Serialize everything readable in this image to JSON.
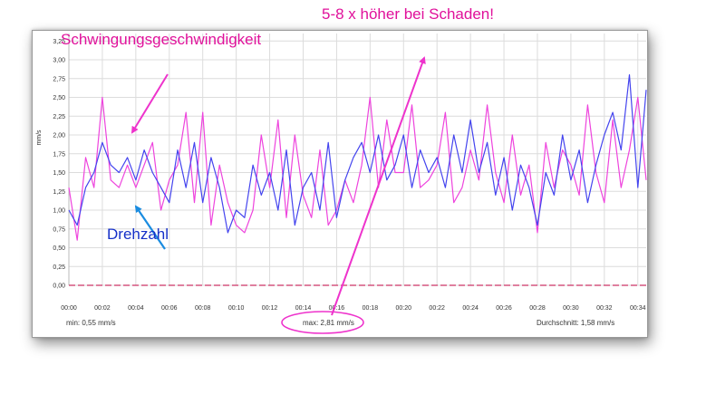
{
  "chart_data": {
    "type": "line",
    "title": "",
    "xlabel": "",
    "ylabel": "mm/s",
    "ylim": [
      0,
      3.35
    ],
    "y_ticks": [
      "0,00",
      "0,25",
      "0,50",
      "0,75",
      "1,00",
      "1,25",
      "1,50",
      "1,75",
      "2,00",
      "2,25",
      "2,50",
      "2,75",
      "3,00",
      "3,25"
    ],
    "x_ticks": [
      "00:00",
      "00:02",
      "00:04",
      "00:06",
      "00:08",
      "00:10",
      "00:12",
      "00:14",
      "00:16",
      "00:18",
      "00:20",
      "00:22",
      "00:24",
      "00:26",
      "00:28",
      "00:30",
      "00:32",
      "00:34"
    ],
    "xlim": [
      0,
      34.5
    ],
    "grid": true,
    "legend": "none",
    "series": [
      {
        "name": "Schwingungsgeschwindigkeit",
        "color": "#ee44dd",
        "x": [
          0,
          0.5,
          1,
          1.5,
          2,
          2.5,
          3,
          3.5,
          4,
          4.5,
          5,
          5.5,
          6,
          6.5,
          7,
          7.5,
          8,
          8.5,
          9,
          9.5,
          10,
          10.5,
          11,
          11.5,
          12,
          12.5,
          13,
          13.5,
          14,
          14.5,
          15,
          15.5,
          16,
          16.5,
          17,
          17.5,
          18,
          18.5,
          19,
          19.5,
          20,
          20.5,
          21,
          21.5,
          22,
          22.5,
          23,
          23.5,
          24,
          24.5,
          25,
          25.5,
          26,
          26.5,
          27,
          27.5,
          28,
          28.5,
          29,
          29.5,
          30,
          30.5,
          31,
          31.5,
          32,
          32.5,
          33,
          33.5,
          34,
          34.5
        ],
        "values": [
          1.3,
          0.6,
          1.7,
          1.3,
          2.5,
          1.4,
          1.3,
          1.6,
          1.3,
          1.6,
          1.9,
          1.0,
          1.4,
          1.6,
          2.3,
          1.1,
          2.3,
          0.8,
          1.6,
          1.1,
          0.8,
          0.7,
          1.0,
          2.0,
          1.3,
          2.2,
          0.9,
          2.0,
          1.2,
          0.9,
          1.8,
          0.8,
          1.0,
          1.4,
          1.1,
          1.6,
          2.5,
          1.3,
          2.2,
          1.5,
          1.5,
          2.4,
          1.3,
          1.4,
          1.6,
          2.3,
          1.1,
          1.3,
          1.8,
          1.4,
          2.4,
          1.5,
          1.1,
          2.0,
          1.2,
          1.6,
          0.7,
          1.9,
          1.3,
          1.8,
          1.6,
          1.2,
          2.4,
          1.5,
          1.1,
          2.2,
          1.3,
          1.8,
          2.5,
          1.4
        ]
      },
      {
        "name": "Drehzahl",
        "color": "#4444ee",
        "x": [
          0,
          0.5,
          1,
          1.5,
          2,
          2.5,
          3,
          3.5,
          4,
          4.5,
          5,
          5.5,
          6,
          6.5,
          7,
          7.5,
          8,
          8.5,
          9,
          9.5,
          10,
          10.5,
          11,
          11.5,
          12,
          12.5,
          13,
          13.5,
          14,
          14.5,
          15,
          15.5,
          16,
          16.5,
          17,
          17.5,
          18,
          18.5,
          19,
          19.5,
          20,
          20.5,
          21,
          21.5,
          22,
          22.5,
          23,
          23.5,
          24,
          24.5,
          25,
          25.5,
          26,
          26.5,
          27,
          27.5,
          28,
          28.5,
          29,
          29.5,
          30,
          30.5,
          31,
          31.5,
          32,
          32.5,
          33,
          33.5,
          34,
          34.5
        ],
        "values": [
          1.0,
          0.8,
          1.3,
          1.5,
          1.9,
          1.6,
          1.5,
          1.7,
          1.4,
          1.8,
          1.5,
          1.3,
          1.1,
          1.8,
          1.3,
          1.9,
          1.1,
          1.7,
          1.3,
          0.7,
          1.0,
          0.9,
          1.6,
          1.2,
          1.5,
          1.0,
          1.8,
          0.8,
          1.3,
          1.5,
          1.0,
          1.9,
          0.9,
          1.4,
          1.7,
          1.9,
          1.5,
          2.0,
          1.4,
          1.6,
          2.0,
          1.3,
          1.8,
          1.5,
          1.7,
          1.3,
          2.0,
          1.5,
          2.2,
          1.5,
          1.9,
          1.2,
          1.7,
          1.0,
          1.6,
          1.3,
          0.8,
          1.5,
          1.2,
          2.0,
          1.4,
          1.8,
          1.1,
          1.6,
          2.0,
          2.3,
          1.8,
          2.8,
          1.3,
          2.6
        ]
      }
    ],
    "baseline": {
      "value": 0,
      "color": "#cc3366"
    },
    "annotations": [
      {
        "id": "vib",
        "text": "Schwingungsgeschwindigkeit",
        "color": "#e0119b"
      },
      {
        "id": "rpm",
        "text": "Drehzahl",
        "color": "#1530c8"
      },
      {
        "id": "damage",
        "text": "5-8 x höher bei Schaden!",
        "color": "#e0119b"
      }
    ]
  },
  "footer": {
    "min": "min: 0,55 mm/s",
    "max": "max: 2,81 mm/s",
    "avg": "Durchschnitt: 1,58 mm/s"
  }
}
